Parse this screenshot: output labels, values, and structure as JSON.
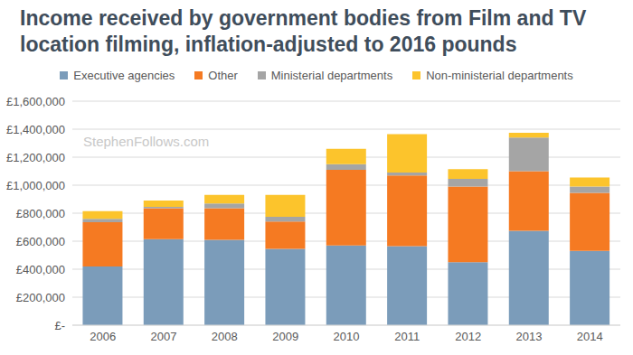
{
  "chart_data": {
    "type": "bar",
    "title": "Income received by government bodies from Film and TV location filming, inflation-adjusted to 2016 pounds",
    "annotation": "StephenFollows.com",
    "categories": [
      "2006",
      "2007",
      "2008",
      "2009",
      "2010",
      "2011",
      "2012",
      "2013",
      "2014"
    ],
    "series": [
      {
        "name": "Executive agencies",
        "color": "#7b9cba",
        "values": [
          420000,
          615000,
          610000,
          545000,
          570000,
          565000,
          450000,
          675000,
          530000
        ]
      },
      {
        "name": "Other",
        "color": "#f57a22",
        "values": [
          315000,
          220000,
          225000,
          195000,
          540000,
          505000,
          540000,
          425000,
          415000
        ]
      },
      {
        "name": "Ministerial departments",
        "color": "#a5a5a5",
        "values": [
          25000,
          10000,
          35000,
          35000,
          40000,
          20000,
          55000,
          240000,
          45000
        ]
      },
      {
        "name": "Non-ministerial departments",
        "color": "#fcc42c",
        "values": [
          55000,
          45000,
          60000,
          155000,
          110000,
          275000,
          70000,
          35000,
          65000
        ]
      }
    ],
    "ylim": [
      0,
      1600000
    ],
    "yticks": [
      {
        "value": 0,
        "label": "£-"
      },
      {
        "value": 200000,
        "label": "£200,000"
      },
      {
        "value": 400000,
        "label": "£400,000"
      },
      {
        "value": 600000,
        "label": "£600,000"
      },
      {
        "value": 800000,
        "label": "£800,000"
      },
      {
        "value": 1000000,
        "label": "£1,000,000"
      },
      {
        "value": 1200000,
        "label": "£1,200,000"
      },
      {
        "value": 1400000,
        "label": "£1,400,000"
      },
      {
        "value": 1600000,
        "label": "£1,600,000"
      }
    ],
    "stacked": true,
    "grid": true,
    "legend": "top"
  }
}
